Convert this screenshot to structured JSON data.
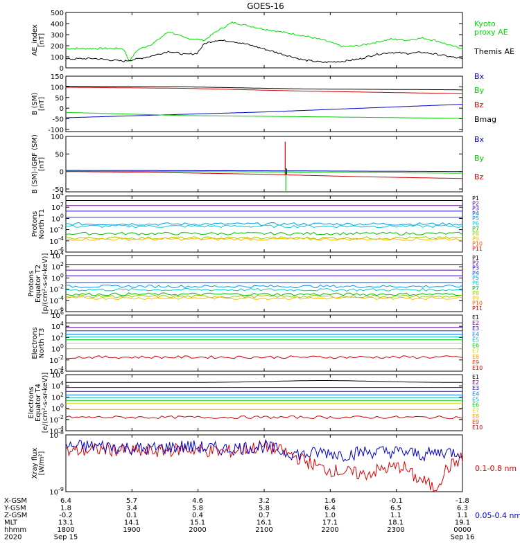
{
  "title": "GOES-16",
  "chart_data": {
    "type": "line",
    "title": "GOES-16",
    "x_range": [
      "2020-09-15 18:00",
      "2020-09-16 00:00"
    ],
    "panels": [
      {
        "id": "ae",
        "ylabel": "AE_index\n[nT]",
        "ylim": [
          0,
          500
        ],
        "ticks": [
          "500",
          "400",
          "300",
          "200",
          "100",
          "0"
        ],
        "tick_values": [
          500,
          400,
          300,
          200,
          100,
          0
        ],
        "scale": "linear",
        "legend": [
          {
            "label": "Kyoto\nproxy AE",
            "color": "#00dd00"
          },
          {
            "label": "Themis AE",
            "color": "#000000"
          }
        ],
        "series": [
          {
            "name": "Kyoto proxy AE",
            "color": "#00dd00",
            "t": [
              0,
              0.07,
              0.145,
              0.16,
              0.18,
              0.22,
              0.26,
              0.3,
              0.35,
              0.38,
              0.42,
              0.46,
              0.5,
              0.55,
              0.6,
              0.65,
              0.7,
              0.74,
              0.78,
              0.82,
              0.86,
              0.9,
              0.94,
              0.97,
              1.0
            ],
            "v": [
              175,
              175,
              175,
              60,
              160,
              220,
              330,
              270,
              250,
              330,
              410,
              380,
              350,
              320,
              290,
              250,
              190,
              200,
              230,
              260,
              250,
              270,
              240,
              200,
              175
            ]
          },
          {
            "name": "Themis AE",
            "color": "#000000",
            "t": [
              0,
              0.07,
              0.145,
              0.18,
              0.22,
              0.26,
              0.3,
              0.33,
              0.35,
              0.38,
              0.42,
              0.46,
              0.5,
              0.55,
              0.6,
              0.65,
              0.7,
              0.74,
              0.78,
              0.82,
              0.86,
              0.9,
              0.94,
              0.97,
              1.0
            ],
            "v": [
              80,
              85,
              60,
              80,
              110,
              150,
              120,
              130,
              220,
              250,
              240,
              210,
              170,
              120,
              70,
              50,
              60,
              80,
              120,
              140,
              130,
              140,
              120,
              100,
              80
            ]
          }
        ]
      },
      {
        "id": "bsm",
        "ylabel": "B (SM)\n[nT]",
        "ylim": [
          -110,
          150
        ],
        "ticks": [
          "150",
          "100",
          "50",
          "0",
          "-50",
          "-100"
        ],
        "tick_values": [
          150,
          100,
          50,
          0,
          -50,
          -100
        ],
        "scale": "linear",
        "legend": [
          {
            "label": "Bx",
            "color": "#0000cc"
          },
          {
            "label": "By",
            "color": "#00cc00"
          },
          {
            "label": "Bz",
            "color": "#cc0000"
          },
          {
            "label": "Bmag",
            "color": "#000000"
          }
        ],
        "series": [
          {
            "name": "Bx",
            "color": "#0000cc",
            "t": [
              0,
              0.5,
              1.0
            ],
            "v": [
              -45,
              -18,
              18
            ]
          },
          {
            "name": "By",
            "color": "#00cc00",
            "t": [
              0,
              0.3,
              0.6,
              1.0
            ],
            "v": [
              -20,
              -35,
              -40,
              -48
            ]
          },
          {
            "name": "Bz",
            "color": "#cc0000",
            "t": [
              0,
              0.3,
              0.6,
              1.0
            ],
            "v": [
              98,
              93,
              80,
              68
            ]
          },
          {
            "name": "Bmag",
            "color": "#000000",
            "t": [
              0,
              0.3,
              0.6,
              1.0
            ],
            "v": [
              103,
              100,
              90,
              86
            ]
          }
        ]
      },
      {
        "id": "bigrf",
        "ylabel": "B (SM)-IGRF (SM)\n[nT]",
        "ylim": [
          -58,
          100
        ],
        "ticks": [
          "100",
          "50",
          "0",
          "-50"
        ],
        "tick_values": [
          100,
          50,
          0,
          -50
        ],
        "scale": "linear",
        "legend": [
          {
            "label": "Bx",
            "color": "#0000cc"
          },
          {
            "label": "By",
            "color": "#00cc00"
          },
          {
            "label": "Bz",
            "color": "#cc0000"
          }
        ],
        "series": [
          {
            "name": "Bx",
            "color": "#0000cc",
            "t": [
              0,
              0.5,
              1.0
            ],
            "v": [
              3,
              2,
              0
            ]
          },
          {
            "name": "By",
            "color": "#00cc00",
            "t": [
              0,
              0.5,
              1.0
            ],
            "v": [
              1,
              -1,
              -5
            ]
          },
          {
            "name": "Bz",
            "color": "#cc0000",
            "t": [
              0,
              0.25,
              0.5,
              0.75,
              1.0
            ],
            "v": [
              0,
              -3,
              -8,
              -15,
              -20
            ]
          }
        ]
      },
      {
        "id": "p_t1",
        "ylabel": "Protons\nNorth T1",
        "scale": "log",
        "ylim": [
          -6,
          4
        ],
        "ticks": [
          "10^4",
          "10^2",
          "10^0",
          "10^-2",
          "10^-4",
          "10^-6"
        ],
        "tick_values": [
          4,
          2,
          0,
          -2,
          -4,
          -6
        ],
        "channels": [
          {
            "label": "P1",
            "color": "#000000",
            "level": 3.2
          },
          {
            "label": "P2",
            "color": "#660088",
            "level": 2.3
          },
          {
            "label": "P3",
            "color": "#2200cc",
            "level": 1.3
          },
          {
            "label": "P4",
            "color": "#0044ff",
            "level": 0.2
          },
          {
            "label": "P5",
            "color": "#0099ee",
            "level": -1.0
          },
          {
            "label": "P6",
            "color": "#00cccc",
            "level": -1.4
          },
          {
            "label": "P7",
            "color": "#00bb00",
            "level": -2.7
          },
          {
            "label": "P8",
            "color": "#99cc00",
            "level": -3.5
          },
          {
            "label": "P9",
            "color": "#ffbb00",
            "level": -3.7
          },
          {
            "label": "P10",
            "color": "#ff5500",
            "level": null
          },
          {
            "label": "P11",
            "color": "#dd0000",
            "level": null
          }
        ]
      },
      {
        "id": "p_t2",
        "ylabel": "Protons\nEquator T2\n[p/(cm²-s-sr-keV)]",
        "scale": "log",
        "ylim": [
          -6,
          4
        ],
        "ticks": [
          "10^4",
          "10^2",
          "10^0",
          "10^-2",
          "10^-4",
          "10^-6"
        ],
        "tick_values": [
          4,
          2,
          0,
          -2,
          -4,
          -6
        ],
        "channels": [
          {
            "label": "P1",
            "color": "#000000",
            "level": 2.4
          },
          {
            "label": "P2",
            "color": "#660088",
            "level": 1.4
          },
          {
            "label": "P3",
            "color": "#2200cc",
            "level": 0.4
          },
          {
            "label": "P4",
            "color": "#0044ff",
            "level": -0.8
          },
          {
            "label": "P5",
            "color": "#0099ee",
            "level": -1.5
          },
          {
            "label": "P6",
            "color": "#00cccc",
            "level": -2.1
          },
          {
            "label": "P7",
            "color": "#00bb00",
            "level": -2.9
          },
          {
            "label": "P8",
            "color": "#99cc00",
            "level": -3.3
          },
          {
            "label": "P9",
            "color": "#ffbb00",
            "level": -3.6
          },
          {
            "label": "P10",
            "color": "#ff5500",
            "level": null
          },
          {
            "label": "P11",
            "color": "#dd0000",
            "level": null
          }
        ]
      },
      {
        "id": "e_t3",
        "ylabel": "Electrons\nNorth T3",
        "scale": "log",
        "ylim": [
          -4,
          6
        ],
        "ticks": [
          "10^6",
          "10^4",
          "10^2",
          "10^0",
          "10^-2",
          "10^-4"
        ],
        "tick_values": [
          6,
          4,
          2,
          0,
          -2,
          -4
        ],
        "channels": [
          {
            "label": "E1",
            "color": "#000000",
            "level": 4.6
          },
          {
            "label": "E2",
            "color": "#660088",
            "level": 3.8
          },
          {
            "label": "E3",
            "color": "#2200cc",
            "level": 3.2
          },
          {
            "label": "E4",
            "color": "#0077ff",
            "level": 2.6
          },
          {
            "label": "E5",
            "color": "#00bbbb",
            "level": 2.1
          },
          {
            "label": "E6",
            "color": "#00cc00",
            "level": 1.6
          },
          {
            "label": "E7",
            "color": "#ccdd00",
            "level": 1.0
          },
          {
            "label": "E8",
            "color": "#ff9900",
            "level": 0.0
          },
          {
            "label": "E9",
            "color": "#ee3300",
            "level": null
          },
          {
            "label": "E10",
            "color": "#cc0000",
            "level": -1.5
          }
        ]
      },
      {
        "id": "e_t4",
        "ylabel": "Electrons\nEquator T4\n[e/(cm²-s-sr-keV)]",
        "scale": "log",
        "ylim": [
          -4,
          6
        ],
        "ticks": [
          "10^6",
          "10^4",
          "10^2",
          "10^0",
          "10^-2",
          "10^-4"
        ],
        "tick_values": [
          6,
          4,
          2,
          0,
          -2,
          -4
        ],
        "channels": [
          {
            "label": "E1",
            "color": "#000000",
            "level": 4.6
          },
          {
            "label": "E2",
            "color": "#660088",
            "level": 3.7
          },
          {
            "label": "E3",
            "color": "#2200cc",
            "level": 3.0
          },
          {
            "label": "E4",
            "color": "#0077ff",
            "level": 2.4
          },
          {
            "label": "E5",
            "color": "#00bbbb",
            "level": 1.9
          },
          {
            "label": "E6",
            "color": "#00cc00",
            "level": 1.4
          },
          {
            "label": "E7",
            "color": "#ccdd00",
            "level": 0.9
          },
          {
            "label": "E8",
            "color": "#ff9900",
            "level": -0.2
          },
          {
            "label": "E9",
            "color": "#ee3300",
            "level": null
          },
          {
            "label": "E10",
            "color": "#cc0000",
            "level": -1.6
          }
        ]
      },
      {
        "id": "xray",
        "ylabel": "Xray flux\n[W/m²]",
        "scale": "log",
        "ylim": [
          -9,
          -8
        ],
        "ticks": [
          "10^-8",
          "10^-9"
        ],
        "tick_values": [
          -8,
          -9
        ],
        "legend": [
          {
            "label": "0.1-0.8 nm",
            "color": "#dd0000"
          },
          {
            "label": "0.05-0.4 nm",
            "color": "#0000cc"
          }
        ],
        "series": [
          {
            "name": "0.1-0.8 nm",
            "color": "#dd0000",
            "t": [
              0,
              0.1,
              0.2,
              0.3,
              0.4,
              0.5,
              0.55,
              0.6,
              0.65,
              0.7,
              0.75,
              0.8,
              0.85,
              0.88,
              0.9,
              0.93,
              0.96,
              1.0
            ],
            "v": [
              -8.3,
              -8.25,
              -8.3,
              -8.25,
              -8.3,
              -8.2,
              -8.3,
              -8.45,
              -8.6,
              -8.65,
              -8.7,
              -8.6,
              -8.55,
              -8.75,
              -8.8,
              -8.95,
              -8.6,
              -8.4
            ]
          },
          {
            "name": "0.05-0.4 nm",
            "color": "#0000cc",
            "t": [
              0,
              0.1,
              0.2,
              0.3,
              0.4,
              0.5,
              0.55,
              0.6,
              0.65,
              0.7,
              0.75,
              0.8,
              0.85,
              0.9,
              0.95,
              1.0
            ],
            "v": [
              -8.2,
              -8.2,
              -8.25,
              -8.2,
              -8.25,
              -8.2,
              -8.3,
              -8.35,
              -8.3,
              -8.35,
              -8.3,
              -8.3,
              -8.3,
              -8.35,
              -8.3,
              -8.3
            ]
          }
        ]
      }
    ],
    "ephemeris": {
      "rows": [
        {
          "label": "X-GSM",
          "values": [
            "6.4",
            "5.7",
            "4.6",
            "3.2",
            "1.6",
            "-0.1",
            "-1.8"
          ]
        },
        {
          "label": "Y-GSM",
          "values": [
            "1.8",
            "3.4",
            "5.8",
            "5.8",
            "6.4",
            "6.5",
            "6.3"
          ]
        },
        {
          "label": "Z-GSM",
          "values": [
            "-0.2",
            "0.1",
            "0.4",
            "0.7",
            "1.0",
            "1.1",
            "1.1"
          ]
        },
        {
          "label": "MLT",
          "values": [
            "13.1",
            "14.1",
            "15.1",
            "16.1",
            "17.1",
            "18.1",
            "19.1"
          ]
        },
        {
          "label": "hhmm",
          "values": [
            "1800",
            "1900",
            "2000",
            "2100",
            "2200",
            "2300",
            "0000"
          ]
        },
        {
          "label": "2020",
          "values": [
            "Sep 15",
            "",
            "",
            "",
            "",
            "",
            "Sep 16"
          ]
        }
      ]
    }
  }
}
